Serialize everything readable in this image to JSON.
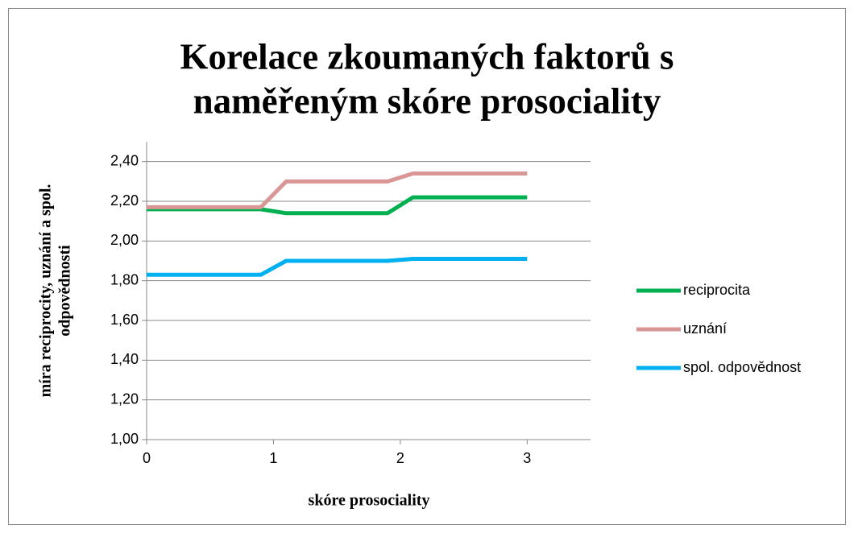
{
  "chart_data": {
    "type": "line",
    "title": [
      "Korelace zkoumaných faktorů s",
      "naměřeným skóre prosociality"
    ],
    "x_label": "skóre prosociality",
    "y_label": [
      "míra reciprocity, uznání a spol.",
      "odpovědnosti"
    ],
    "x": [
      0,
      0.9,
      1.1,
      1.9,
      2.1,
      3
    ],
    "series": [
      {
        "name": "reciprocita",
        "color": "#00b050",
        "values": [
          2.16,
          2.16,
          2.14,
          2.14,
          2.22,
          2.22
        ]
      },
      {
        "name": "uznání",
        "color": "#d99694",
        "values": [
          2.17,
          2.17,
          2.3,
          2.3,
          2.34,
          2.34
        ]
      },
      {
        "name": "spol. odpovědnost",
        "color": "#00b0f0",
        "values": [
          1.83,
          1.83,
          1.9,
          1.9,
          1.91,
          1.91
        ]
      }
    ],
    "xlim": [
      0,
      3.5
    ],
    "xticks": [
      0,
      1,
      2,
      3
    ],
    "ylim": [
      1,
      2.5
    ],
    "yticks": [
      {
        "value": 1,
        "label": "1,00"
      },
      {
        "value": 1.2,
        "label": "1,20"
      },
      {
        "value": 1.4,
        "label": "1,40"
      },
      {
        "value": 1.6,
        "label": "1,60"
      },
      {
        "value": 1.8,
        "label": "1,80"
      },
      {
        "value": 2,
        "label": "2,00"
      },
      {
        "value": 2.2,
        "label": "2,20"
      },
      {
        "value": 2.4,
        "label": "2,40"
      }
    ],
    "grid": true,
    "legend": "right"
  }
}
